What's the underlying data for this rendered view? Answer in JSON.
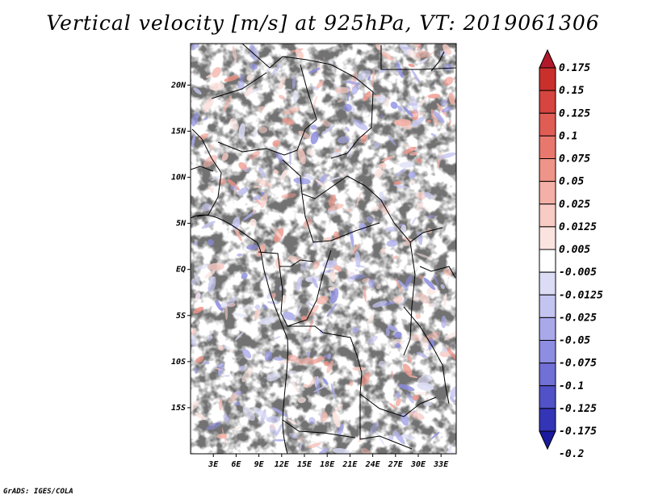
{
  "title": "Vertical velocity [m/s] at 925hPa, VT: 2019061306",
  "credit": "GrADS: IGES/COLA",
  "map": {
    "region": "Central Africa",
    "field": "vertical velocity",
    "lon_range": [
      0,
      35
    ],
    "lat_range": [
      -20,
      24.5
    ],
    "x_ticks": [
      "3E",
      "6E",
      "9E",
      "12E",
      "15E",
      "18E",
      "21E",
      "24E",
      "27E",
      "30E",
      "33E"
    ],
    "y_ticks": [
      "20N",
      "15N",
      "10N",
      "5N",
      "EQ",
      "5S",
      "10S",
      "15S"
    ],
    "x_tick_values": [
      3,
      6,
      9,
      12,
      15,
      18,
      21,
      24,
      27,
      30,
      33
    ],
    "y_tick_values": [
      20,
      15,
      10,
      5,
      0,
      -5,
      -10,
      -15
    ]
  },
  "colorbar": {
    "labels": [
      "0.175",
      "0.15",
      "0.125",
      "0.1",
      "0.075",
      "0.05",
      "0.025",
      "0.0125",
      "0.005",
      "-0.005",
      "-0.0125",
      "-0.025",
      "-0.05",
      "-0.075",
      "-0.1",
      "-0.125",
      "-0.175",
      "-0.2"
    ],
    "colors": [
      "#b2182b",
      "#c9302c",
      "#d6453f",
      "#e05d55",
      "#e8786d",
      "#ef9488",
      "#f4b0a6",
      "#f8cbc4",
      "#fbe4e0",
      "#ffffff",
      "#dcdcf6",
      "#c4c4f0",
      "#a9a9ea",
      "#8d8de2",
      "#7070d6",
      "#5252c8",
      "#3434b6",
      "#1a1a9e"
    ]
  }
}
